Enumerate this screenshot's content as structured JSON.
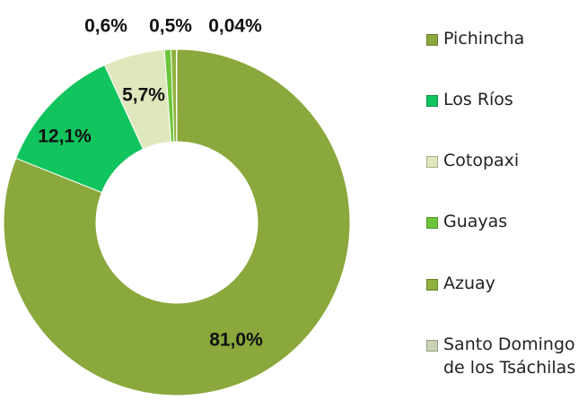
{
  "chart_data": {
    "type": "donut",
    "categories": [
      "Pichincha",
      "Los Ríos",
      "Cotopaxi",
      "Guayas",
      "Azuay",
      "Santo Domingo de los Tsáchilas"
    ],
    "values": [
      81.0,
      12.1,
      5.7,
      0.6,
      0.5,
      0.04
    ],
    "value_labels": [
      "81,0%",
      "12,1%",
      "5,7%",
      "0,6%",
      "0,5%",
      "0,04%"
    ],
    "colors": [
      "#8aa83c",
      "#12c45e",
      "#dfe8bd",
      "#6cc53a",
      "#8fb23e",
      "#c9d2b2"
    ]
  }
}
